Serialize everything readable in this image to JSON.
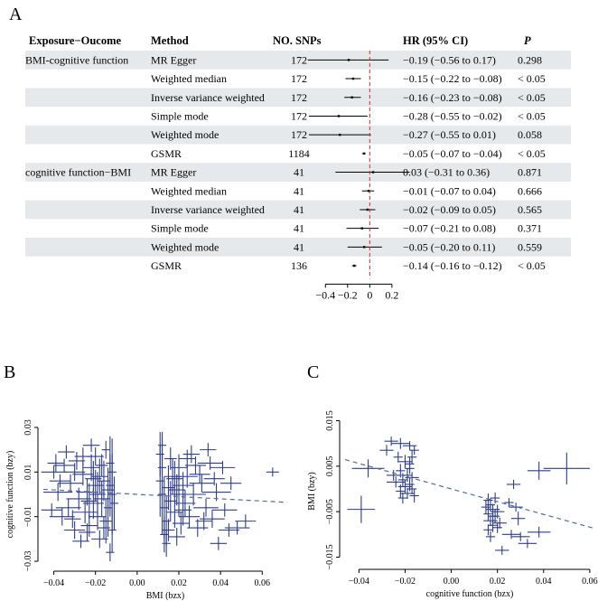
{
  "figure": {
    "panels": [
      {
        "letter": "A"
      },
      {
        "letter": "B"
      },
      {
        "letter": "C"
      }
    ]
  },
  "chart_data": [
    {
      "type": "forest",
      "panel": "A",
      "columns": {
        "exposure": "Exposure−Oucome",
        "method": "Method",
        "snps": "NO. SNPs",
        "hr": "HR (95% CI)",
        "p": "P"
      },
      "rows": [
        {
          "exposure": "BMI-cognitive function",
          "method": "MR Egger",
          "snps": "172",
          "est": -0.19,
          "lo": -0.56,
          "hi": 0.17,
          "hr_text": "−0.19 (−0.56 to 0.17)",
          "p": "0.298"
        },
        {
          "exposure": "",
          "method": "Weighted median",
          "snps": "172",
          "est": -0.15,
          "lo": -0.22,
          "hi": -0.08,
          "hr_text": "−0.15 (−0.22 to −0.08)",
          "p": "< 0.05"
        },
        {
          "exposure": "",
          "method": "Inverse variance weighted",
          "snps": "172",
          "est": -0.16,
          "lo": -0.23,
          "hi": -0.08,
          "hr_text": "−0.16 (−0.23 to −0.08)",
          "p": "< 0.05"
        },
        {
          "exposure": "",
          "method": "Simple mode",
          "snps": "172",
          "est": -0.28,
          "lo": -0.55,
          "hi": -0.02,
          "hr_text": "−0.28 (−0.55 to −0.02)",
          "p": "< 0.05"
        },
        {
          "exposure": "",
          "method": "Weighted mode",
          "snps": "172",
          "est": -0.27,
          "lo": -0.55,
          "hi": 0.01,
          "hr_text": "−0.27 (−0.55 to 0.01)",
          "p": "0.058"
        },
        {
          "exposure": "",
          "method": "GSMR",
          "snps": "1184",
          "est": -0.05,
          "lo": -0.07,
          "hi": -0.04,
          "hr_text": "−0.05 (−0.07 to −0.04)",
          "p": "< 0.05"
        },
        {
          "exposure": "cognitive function−BMI",
          "method": "MR Egger",
          "snps": "41",
          "est": 0.03,
          "lo": -0.31,
          "hi": 0.36,
          "hr_text": "0.03 (−0.31 to 0.36)",
          "p": "0.871"
        },
        {
          "exposure": "",
          "method": "Weighted median",
          "snps": "41",
          "est": -0.01,
          "lo": -0.07,
          "hi": 0.04,
          "hr_text": "−0.01 (−0.07 to 0.04)",
          "p": "0.666"
        },
        {
          "exposure": "",
          "method": "Inverse variance weighted",
          "snps": "41",
          "est": -0.02,
          "lo": -0.09,
          "hi": 0.05,
          "hr_text": "−0.02 (−0.09 to 0.05)",
          "p": "0.565"
        },
        {
          "exposure": "",
          "method": "Simple mode",
          "snps": "41",
          "est": -0.07,
          "lo": -0.21,
          "hi": 0.08,
          "hr_text": "−0.07 (−0.21 to 0.08)",
          "p": "0.371"
        },
        {
          "exposure": "",
          "method": "Weighted mode",
          "snps": "41",
          "est": -0.05,
          "lo": -0.2,
          "hi": 0.11,
          "hr_text": "−0.05 (−0.20 to 0.11)",
          "p": "0.559"
        },
        {
          "exposure": "",
          "method": "GSMR",
          "snps": "136",
          "est": -0.14,
          "lo": -0.16,
          "hi": -0.12,
          "hr_text": "−0.14 (−0.16 to −0.12)",
          "p": "< 0.05"
        }
      ],
      "xlim": [
        -0.5,
        0.25
      ],
      "xticks": [
        {
          "v": -0.4,
          "label": "−0.4"
        },
        {
          "v": -0.2,
          "label": "−0.2"
        },
        {
          "v": 0,
          "label": "0"
        },
        {
          "v": 0.2,
          "label": "0.2"
        }
      ],
      "reference_line": 0,
      "colors": {
        "stripe": "#e6e9ec",
        "reference": "#d9262a",
        "ci": "#000000"
      }
    },
    {
      "type": "scatter",
      "panel": "B",
      "xlabel": "BMI (bzx)",
      "ylabel": "cognitive function (bzy)",
      "xlim": [
        -0.045,
        0.072
      ],
      "ylim": [
        -0.032,
        0.032
      ],
      "xticks": [
        {
          "v": -0.04,
          "label": "−0.04"
        },
        {
          "v": -0.02,
          "label": "−0.02"
        },
        {
          "v": 0.0,
          "label": "0.00"
        },
        {
          "v": 0.02,
          "label": "0.02"
        },
        {
          "v": 0.04,
          "label": "0.04"
        },
        {
          "v": 0.06,
          "label": "0.06"
        }
      ],
      "yticks": [
        {
          "v": -0.03,
          "label": "−0.03"
        },
        {
          "v": -0.01,
          "label": "−0.01"
        },
        {
          "v": 0.01,
          "label": "0.01"
        },
        {
          "v": 0.03,
          "label": "0.03"
        }
      ],
      "fit_line": {
        "slope": -0.05,
        "intercept": 0.0
      },
      "point_color": "#2e3d8f",
      "points": [
        [
          -0.012,
          0.0,
          0.002,
          0.018
        ],
        [
          -0.013,
          0.004,
          0.002,
          0.014
        ],
        [
          -0.014,
          -0.006,
          0.002,
          0.013
        ],
        [
          -0.012,
          0.01,
          0.002,
          0.015
        ],
        [
          -0.015,
          -0.012,
          0.003,
          0.01
        ],
        [
          -0.013,
          0.014,
          0.002,
          0.012
        ],
        [
          -0.012,
          -0.016,
          0.002,
          0.01
        ],
        [
          -0.014,
          0.002,
          0.003,
          0.01
        ],
        [
          -0.016,
          0.006,
          0.003,
          0.009
        ],
        [
          -0.011,
          -0.004,
          0.002,
          0.012
        ],
        [
          -0.013,
          -0.026,
          0.002,
          0.004
        ],
        [
          -0.015,
          0.02,
          0.002,
          0.004
        ],
        [
          -0.017,
          -0.002,
          0.004,
          0.008
        ],
        [
          -0.018,
          0.008,
          0.004,
          0.008
        ],
        [
          -0.019,
          -0.01,
          0.004,
          0.006
        ],
        [
          -0.02,
          0.004,
          0.004,
          0.007
        ],
        [
          -0.021,
          -0.004,
          0.005,
          0.007
        ],
        [
          -0.022,
          0.012,
          0.004,
          0.006
        ],
        [
          -0.023,
          -0.014,
          0.004,
          0.005
        ],
        [
          -0.024,
          0.001,
          0.005,
          0.006
        ],
        [
          -0.025,
          -0.008,
          0.006,
          0.005
        ],
        [
          -0.026,
          0.009,
          0.005,
          0.005
        ],
        [
          -0.028,
          -0.002,
          0.006,
          0.005
        ],
        [
          -0.029,
          0.015,
          0.004,
          0.004
        ],
        [
          -0.03,
          -0.016,
          0.005,
          0.004
        ],
        [
          -0.032,
          0.005,
          0.006,
          0.004
        ],
        [
          -0.033,
          -0.006,
          0.006,
          0.004
        ],
        [
          -0.035,
          0.013,
          0.005,
          0.003
        ],
        [
          -0.036,
          -0.01,
          0.006,
          0.004
        ],
        [
          -0.038,
          0.001,
          0.007,
          0.004
        ],
        [
          -0.04,
          0.01,
          0.006,
          0.003
        ],
        [
          -0.041,
          -0.007,
          0.005,
          0.003
        ],
        [
          -0.039,
          0.014,
          0.004,
          0.004
        ],
        [
          -0.034,
          0.019,
          0.004,
          0.003
        ],
        [
          -0.027,
          -0.021,
          0.004,
          0.003
        ],
        [
          -0.022,
          0.022,
          0.004,
          0.003
        ],
        [
          -0.018,
          -0.02,
          0.004,
          0.004
        ],
        [
          -0.02,
          0.017,
          0.004,
          0.004
        ],
        [
          -0.017,
          0.013,
          0.003,
          0.005
        ],
        [
          -0.016,
          -0.015,
          0.003,
          0.005
        ],
        [
          -0.019,
          0.0,
          0.004,
          0.01
        ],
        [
          -0.021,
          0.007,
          0.004,
          0.008
        ],
        [
          -0.023,
          -0.003,
          0.004,
          0.008
        ],
        [
          -0.024,
          -0.017,
          0.004,
          0.004
        ],
        [
          -0.03,
          0.01,
          0.005,
          0.004
        ],
        [
          -0.031,
          -0.011,
          0.004,
          0.004
        ],
        [
          -0.037,
          0.006,
          0.005,
          0.003
        ],
        [
          -0.026,
          0.017,
          0.004,
          0.004
        ],
        [
          0.012,
          0.0,
          0.002,
          0.018
        ],
        [
          0.011,
          0.006,
          0.002,
          0.016
        ],
        [
          0.013,
          -0.006,
          0.002,
          0.014
        ],
        [
          0.012,
          0.012,
          0.002,
          0.013
        ],
        [
          0.014,
          -0.012,
          0.002,
          0.011
        ],
        [
          0.011,
          0.018,
          0.002,
          0.01
        ],
        [
          0.013,
          -0.018,
          0.002,
          0.008
        ],
        [
          0.015,
          0.003,
          0.003,
          0.01
        ],
        [
          0.016,
          -0.003,
          0.003,
          0.009
        ],
        [
          0.012,
          0.022,
          0.002,
          0.006
        ],
        [
          0.014,
          -0.022,
          0.002,
          0.006
        ],
        [
          0.017,
          0.008,
          0.004,
          0.008
        ],
        [
          0.018,
          -0.008,
          0.004,
          0.007
        ],
        [
          0.019,
          0.002,
          0.004,
          0.007
        ],
        [
          0.02,
          0.012,
          0.004,
          0.006
        ],
        [
          0.021,
          -0.013,
          0.004,
          0.005
        ],
        [
          0.022,
          0.004,
          0.005,
          0.006
        ],
        [
          0.023,
          -0.004,
          0.005,
          0.006
        ],
        [
          0.024,
          0.008,
          0.005,
          0.005
        ],
        [
          0.025,
          -0.01,
          0.005,
          0.005
        ],
        [
          0.027,
          0.0,
          0.006,
          0.005
        ],
        [
          0.028,
          0.013,
          0.005,
          0.004
        ],
        [
          0.029,
          -0.015,
          0.005,
          0.004
        ],
        [
          0.031,
          0.005,
          0.006,
          0.004
        ],
        [
          0.033,
          -0.006,
          0.006,
          0.004
        ],
        [
          0.035,
          0.014,
          0.006,
          0.003
        ],
        [
          0.036,
          -0.011,
          0.006,
          0.004
        ],
        [
          0.038,
          0.001,
          0.007,
          0.004
        ],
        [
          0.041,
          0.012,
          0.006,
          0.003
        ],
        [
          0.042,
          -0.007,
          0.006,
          0.003
        ],
        [
          0.044,
          -0.016,
          0.005,
          0.003
        ],
        [
          0.048,
          -0.015,
          0.006,
          0.003
        ],
        [
          0.052,
          -0.012,
          0.005,
          0.003
        ],
        [
          0.065,
          0.01,
          0.003,
          0.002
        ],
        [
          0.039,
          -0.022,
          0.004,
          0.003
        ],
        [
          0.034,
          0.02,
          0.004,
          0.003
        ],
        [
          0.026,
          0.018,
          0.004,
          0.004
        ],
        [
          0.019,
          -0.019,
          0.004,
          0.004
        ],
        [
          0.016,
          0.016,
          0.003,
          0.005
        ],
        [
          0.015,
          -0.016,
          0.003,
          0.005
        ],
        [
          0.02,
          0.0,
          0.004,
          0.01
        ],
        [
          0.018,
          0.007,
          0.004,
          0.008
        ],
        [
          0.022,
          -0.007,
          0.004,
          0.007
        ],
        [
          0.03,
          0.009,
          0.005,
          0.004
        ],
        [
          0.032,
          -0.012,
          0.004,
          0.004
        ],
        [
          0.024,
          0.016,
          0.004,
          0.004
        ],
        [
          0.037,
          0.007,
          0.005,
          0.003
        ],
        [
          0.045,
          0.005,
          0.005,
          0.003
        ]
      ]
    },
    {
      "type": "scatter",
      "panel": "C",
      "xlabel": "cognitive function (bzx)",
      "ylabel": "BMI (bzy)",
      "xlim": [
        -0.046,
        0.062
      ],
      "ylim": [
        -0.0165,
        0.0155
      ],
      "xticks": [
        {
          "v": -0.04,
          "label": "−0.04"
        },
        {
          "v": -0.02,
          "label": "−0.02"
        },
        {
          "v": 0.0,
          "label": "0.00"
        },
        {
          "v": 0.02,
          "label": "0.02"
        },
        {
          "v": 0.04,
          "label": "0.04"
        },
        {
          "v": 0.06,
          "label": "0.06"
        }
      ],
      "yticks": [
        {
          "v": -0.015,
          "label": "−0.015"
        },
        {
          "v": -0.005,
          "label": "−0.005"
        },
        {
          "v": 0.005,
          "label": "0.005"
        },
        {
          "v": 0.015,
          "label": "0.015"
        }
      ],
      "fit_line": {
        "slope": -0.14,
        "intercept": 0.0
      },
      "point_color": "#2e3d8f",
      "points": [
        [
          -0.039,
          -0.0045,
          0.006,
          0.003
        ],
        [
          -0.036,
          0.0045,
          0.007,
          0.002
        ],
        [
          -0.026,
          0.0105,
          0.003,
          0.001
        ],
        [
          -0.022,
          0.01,
          0.004,
          0.0012
        ],
        [
          -0.018,
          0.0095,
          0.003,
          0.001
        ],
        [
          -0.028,
          0.0085,
          0.003,
          0.0012
        ],
        [
          -0.017,
          0.007,
          0.002,
          0.0015
        ],
        [
          -0.02,
          0.006,
          0.003,
          0.0015
        ],
        [
          -0.018,
          0.0045,
          0.002,
          0.0012
        ],
        [
          -0.022,
          0.004,
          0.002,
          0.0015
        ],
        [
          -0.019,
          0.003,
          0.002,
          0.0015
        ],
        [
          -0.017,
          0.0025,
          0.003,
          0.0012
        ],
        [
          -0.021,
          0.002,
          0.002,
          0.0015
        ],
        [
          -0.024,
          0.0015,
          0.004,
          0.0012
        ],
        [
          -0.018,
          0.001,
          0.002,
          0.0015
        ],
        [
          -0.02,
          0.0005,
          0.003,
          0.0015
        ],
        [
          -0.017,
          0.0,
          0.002,
          0.0012
        ],
        [
          -0.022,
          -0.0005,
          0.002,
          0.0015
        ],
        [
          -0.019,
          -0.001,
          0.003,
          0.0012
        ],
        [
          -0.016,
          -0.0015,
          0.002,
          0.0015
        ],
        [
          -0.021,
          -0.002,
          0.002,
          0.0012
        ],
        [
          -0.018,
          0.0055,
          0.002,
          0.0015
        ],
        [
          -0.023,
          0.007,
          0.002,
          0.0012
        ],
        [
          -0.016,
          0.0085,
          0.002,
          0.001
        ],
        [
          -0.025,
          0.003,
          0.003,
          0.0012
        ],
        [
          0.016,
          -0.0025,
          0.002,
          0.0015
        ],
        [
          0.017,
          -0.0035,
          0.002,
          0.0015
        ],
        [
          0.018,
          -0.0045,
          0.003,
          0.0012
        ],
        [
          0.016,
          -0.0055,
          0.002,
          0.0015
        ],
        [
          0.019,
          -0.006,
          0.002,
          0.0015
        ],
        [
          0.017,
          -0.007,
          0.003,
          0.0012
        ],
        [
          0.018,
          -0.008,
          0.002,
          0.0015
        ],
        [
          0.016,
          -0.009,
          0.002,
          0.0012
        ],
        [
          0.02,
          -0.005,
          0.003,
          0.0015
        ],
        [
          0.021,
          -0.0075,
          0.003,
          0.0012
        ],
        [
          0.015,
          -0.004,
          0.002,
          0.0015
        ],
        [
          0.017,
          -0.0105,
          0.002,
          0.0012
        ],
        [
          0.019,
          -0.002,
          0.002,
          0.0012
        ],
        [
          0.018,
          -0.006,
          0.002,
          0.0015
        ],
        [
          0.02,
          -0.0085,
          0.002,
          0.0012
        ],
        [
          0.022,
          -0.0135,
          0.003,
          0.001
        ],
        [
          0.026,
          -0.01,
          0.004,
          0.001
        ],
        [
          0.03,
          -0.0105,
          0.004,
          0.001
        ],
        [
          0.029,
          -0.0065,
          0.003,
          0.0015
        ],
        [
          0.028,
          -0.004,
          0.003,
          0.001
        ],
        [
          0.025,
          -0.003,
          0.002,
          0.001
        ],
        [
          0.033,
          -0.012,
          0.004,
          0.001
        ],
        [
          0.038,
          -0.0095,
          0.005,
          0.0012
        ],
        [
          0.038,
          0.004,
          0.005,
          0.002
        ],
        [
          0.05,
          0.0045,
          0.01,
          0.0035
        ],
        [
          0.027,
          0.001,
          0.003,
          0.001
        ]
      ]
    }
  ]
}
